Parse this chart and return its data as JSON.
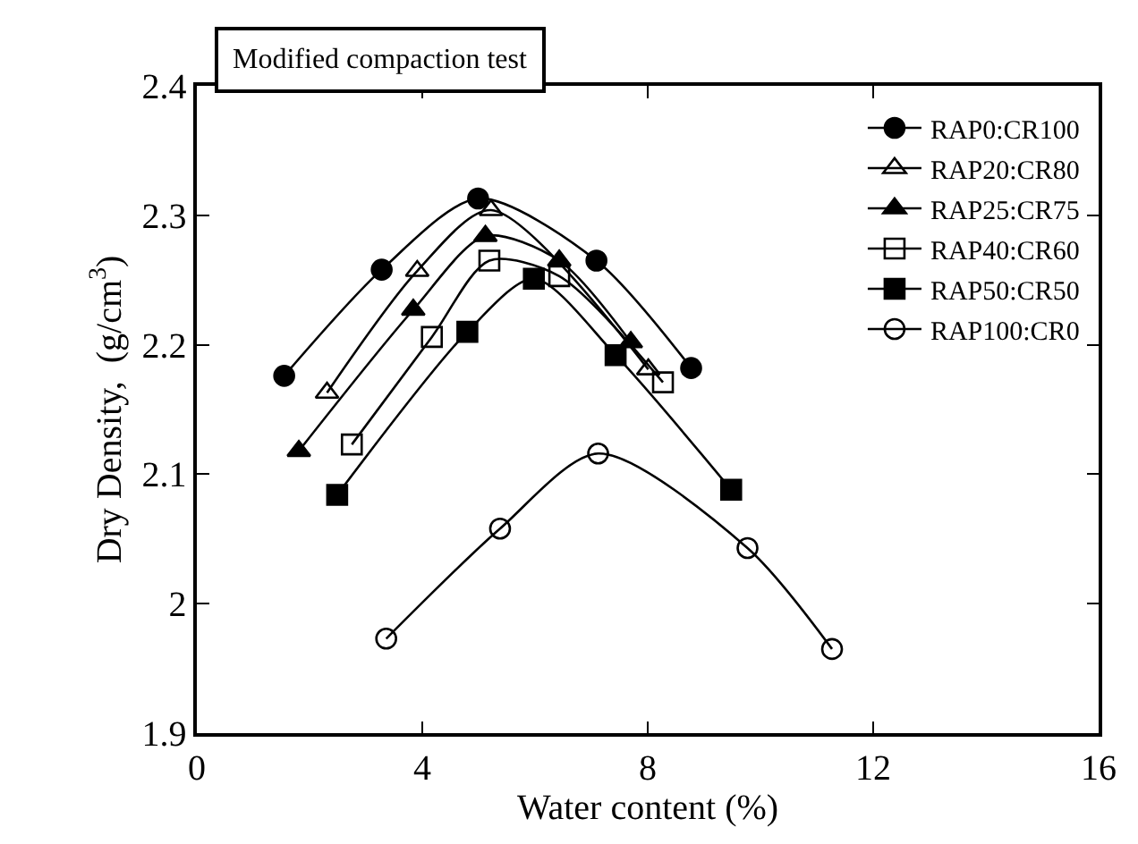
{
  "chart_data": {
    "type": "line",
    "xlabel": "Water content (%)",
    "ylabel": "Dry Density,  (g/cm$^{3}$)",
    "annotations": [
      "Modified compaction test"
    ],
    "xlim": [
      0,
      16
    ],
    "xticks": [
      0,
      4,
      8,
      12,
      16
    ],
    "ylim": [
      1.9,
      2.4
    ],
    "yticks": [
      1.9,
      2,
      2.1,
      2.2,
      2.3,
      2.4
    ],
    "legend": "top right",
    "line_style": "solid",
    "series": [
      {
        "name": "RAP0:CR100",
        "color": "#000000",
        "marker": "circle",
        "x": [
          1.55,
          3.28,
          4.99,
          7.09,
          8.77
        ],
        "values": [
          2.176,
          2.258,
          2.313,
          2.265,
          2.182
        ]
      },
      {
        "name": "RAP20:CR80",
        "color": "#000000",
        "marker": "triangle-open",
        "x": [
          2.31,
          3.91,
          5.22,
          8.01
        ],
        "values": [
          2.163,
          2.257,
          2.304,
          2.181
        ]
      },
      {
        "name": "RAP25:CR75",
        "color": "#000000",
        "marker": "triangle",
        "x": [
          1.81,
          3.84,
          5.12,
          6.43,
          7.7
        ],
        "values": [
          2.118,
          2.227,
          2.284,
          2.265,
          2.202
        ]
      },
      {
        "name": "RAP40:CR60",
        "color": "#000000",
        "marker": "square-open",
        "x": [
          2.75,
          4.17,
          5.19,
          6.43,
          8.27
        ],
        "values": [
          2.123,
          2.206,
          2.265,
          2.253,
          2.171
        ]
      },
      {
        "name": "RAP50:CR50",
        "color": "#000000",
        "marker": "square",
        "x": [
          2.49,
          4.8,
          5.98,
          7.43,
          9.48
        ],
        "values": [
          2.084,
          2.21,
          2.251,
          2.192,
          2.088
        ]
      },
      {
        "name": "RAP100:CR0",
        "color": "#000000",
        "marker": "circle-open",
        "x": [
          3.36,
          5.38,
          7.12,
          9.77,
          11.27
        ],
        "values": [
          1.973,
          2.058,
          2.116,
          2.043,
          1.965
        ]
      }
    ]
  }
}
